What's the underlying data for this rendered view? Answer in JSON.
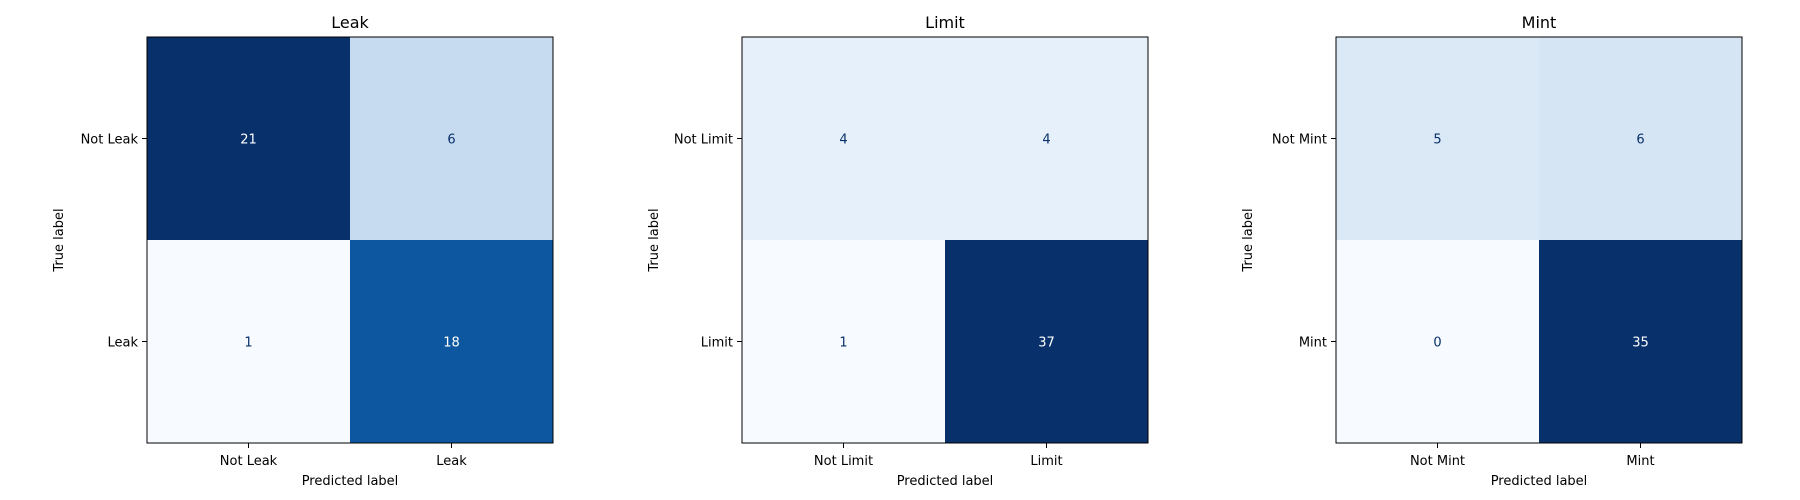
{
  "chart_data": [
    {
      "type": "heatmap",
      "title": "Leak",
      "xlabel": "Predicted label",
      "ylabel": "True label",
      "x_categories": [
        "Not Leak",
        "Leak"
      ],
      "y_categories": [
        "Not Leak",
        "Leak"
      ],
      "values": [
        [
          21,
          6
        ],
        [
          1,
          18
        ]
      ],
      "colormap": "Blues",
      "grid": false
    },
    {
      "type": "heatmap",
      "title": "Limit",
      "xlabel": "Predicted label",
      "ylabel": "True label",
      "x_categories": [
        "Not Limit",
        "Limit"
      ],
      "y_categories": [
        "Not Limit",
        "Limit"
      ],
      "values": [
        [
          4,
          4
        ],
        [
          1,
          37
        ]
      ],
      "colormap": "Blues",
      "grid": false
    },
    {
      "type": "heatmap",
      "title": "Mint",
      "xlabel": "Predicted label",
      "ylabel": "True label",
      "x_categories": [
        "Not Mint",
        "Mint"
      ],
      "y_categories": [
        "Not Mint",
        "Mint"
      ],
      "values": [
        [
          5,
          6
        ],
        [
          0,
          35
        ]
      ],
      "colormap": "Blues",
      "grid": false
    }
  ]
}
